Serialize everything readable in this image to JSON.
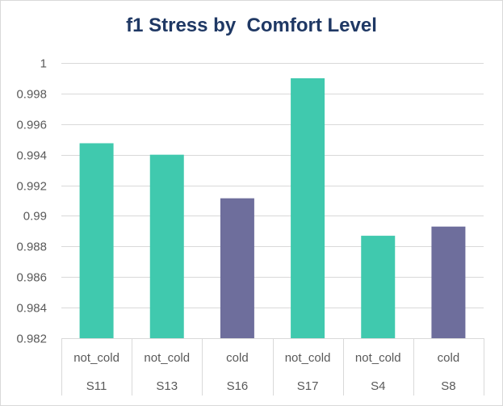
{
  "chart_data": {
    "type": "bar",
    "title": "f1 Stress by  Comfort Level",
    "xlabel": "",
    "ylabel": "",
    "ylim": [
      0.982,
      1
    ],
    "y_ticks": [
      "0.982",
      "0.984",
      "0.986",
      "0.988",
      "0.99",
      "0.992",
      "0.994",
      "0.996",
      "0.998",
      "1"
    ],
    "grid": true,
    "legend": "none",
    "categories": [
      {
        "level": "not_cold",
        "subject": "S11"
      },
      {
        "level": "not_cold",
        "subject": "S13"
      },
      {
        "level": "cold",
        "subject": "S16"
      },
      {
        "level": "not_cold",
        "subject": "S17"
      },
      {
        "level": "not_cold",
        "subject": "S4"
      },
      {
        "level": "cold",
        "subject": "S8"
      }
    ],
    "values": [
      0.99475,
      0.994,
      0.99115,
      0.999,
      0.9887,
      0.9893
    ],
    "colors": {
      "not_cold": "#40c9ae",
      "cold": "#6e6e9c"
    }
  }
}
